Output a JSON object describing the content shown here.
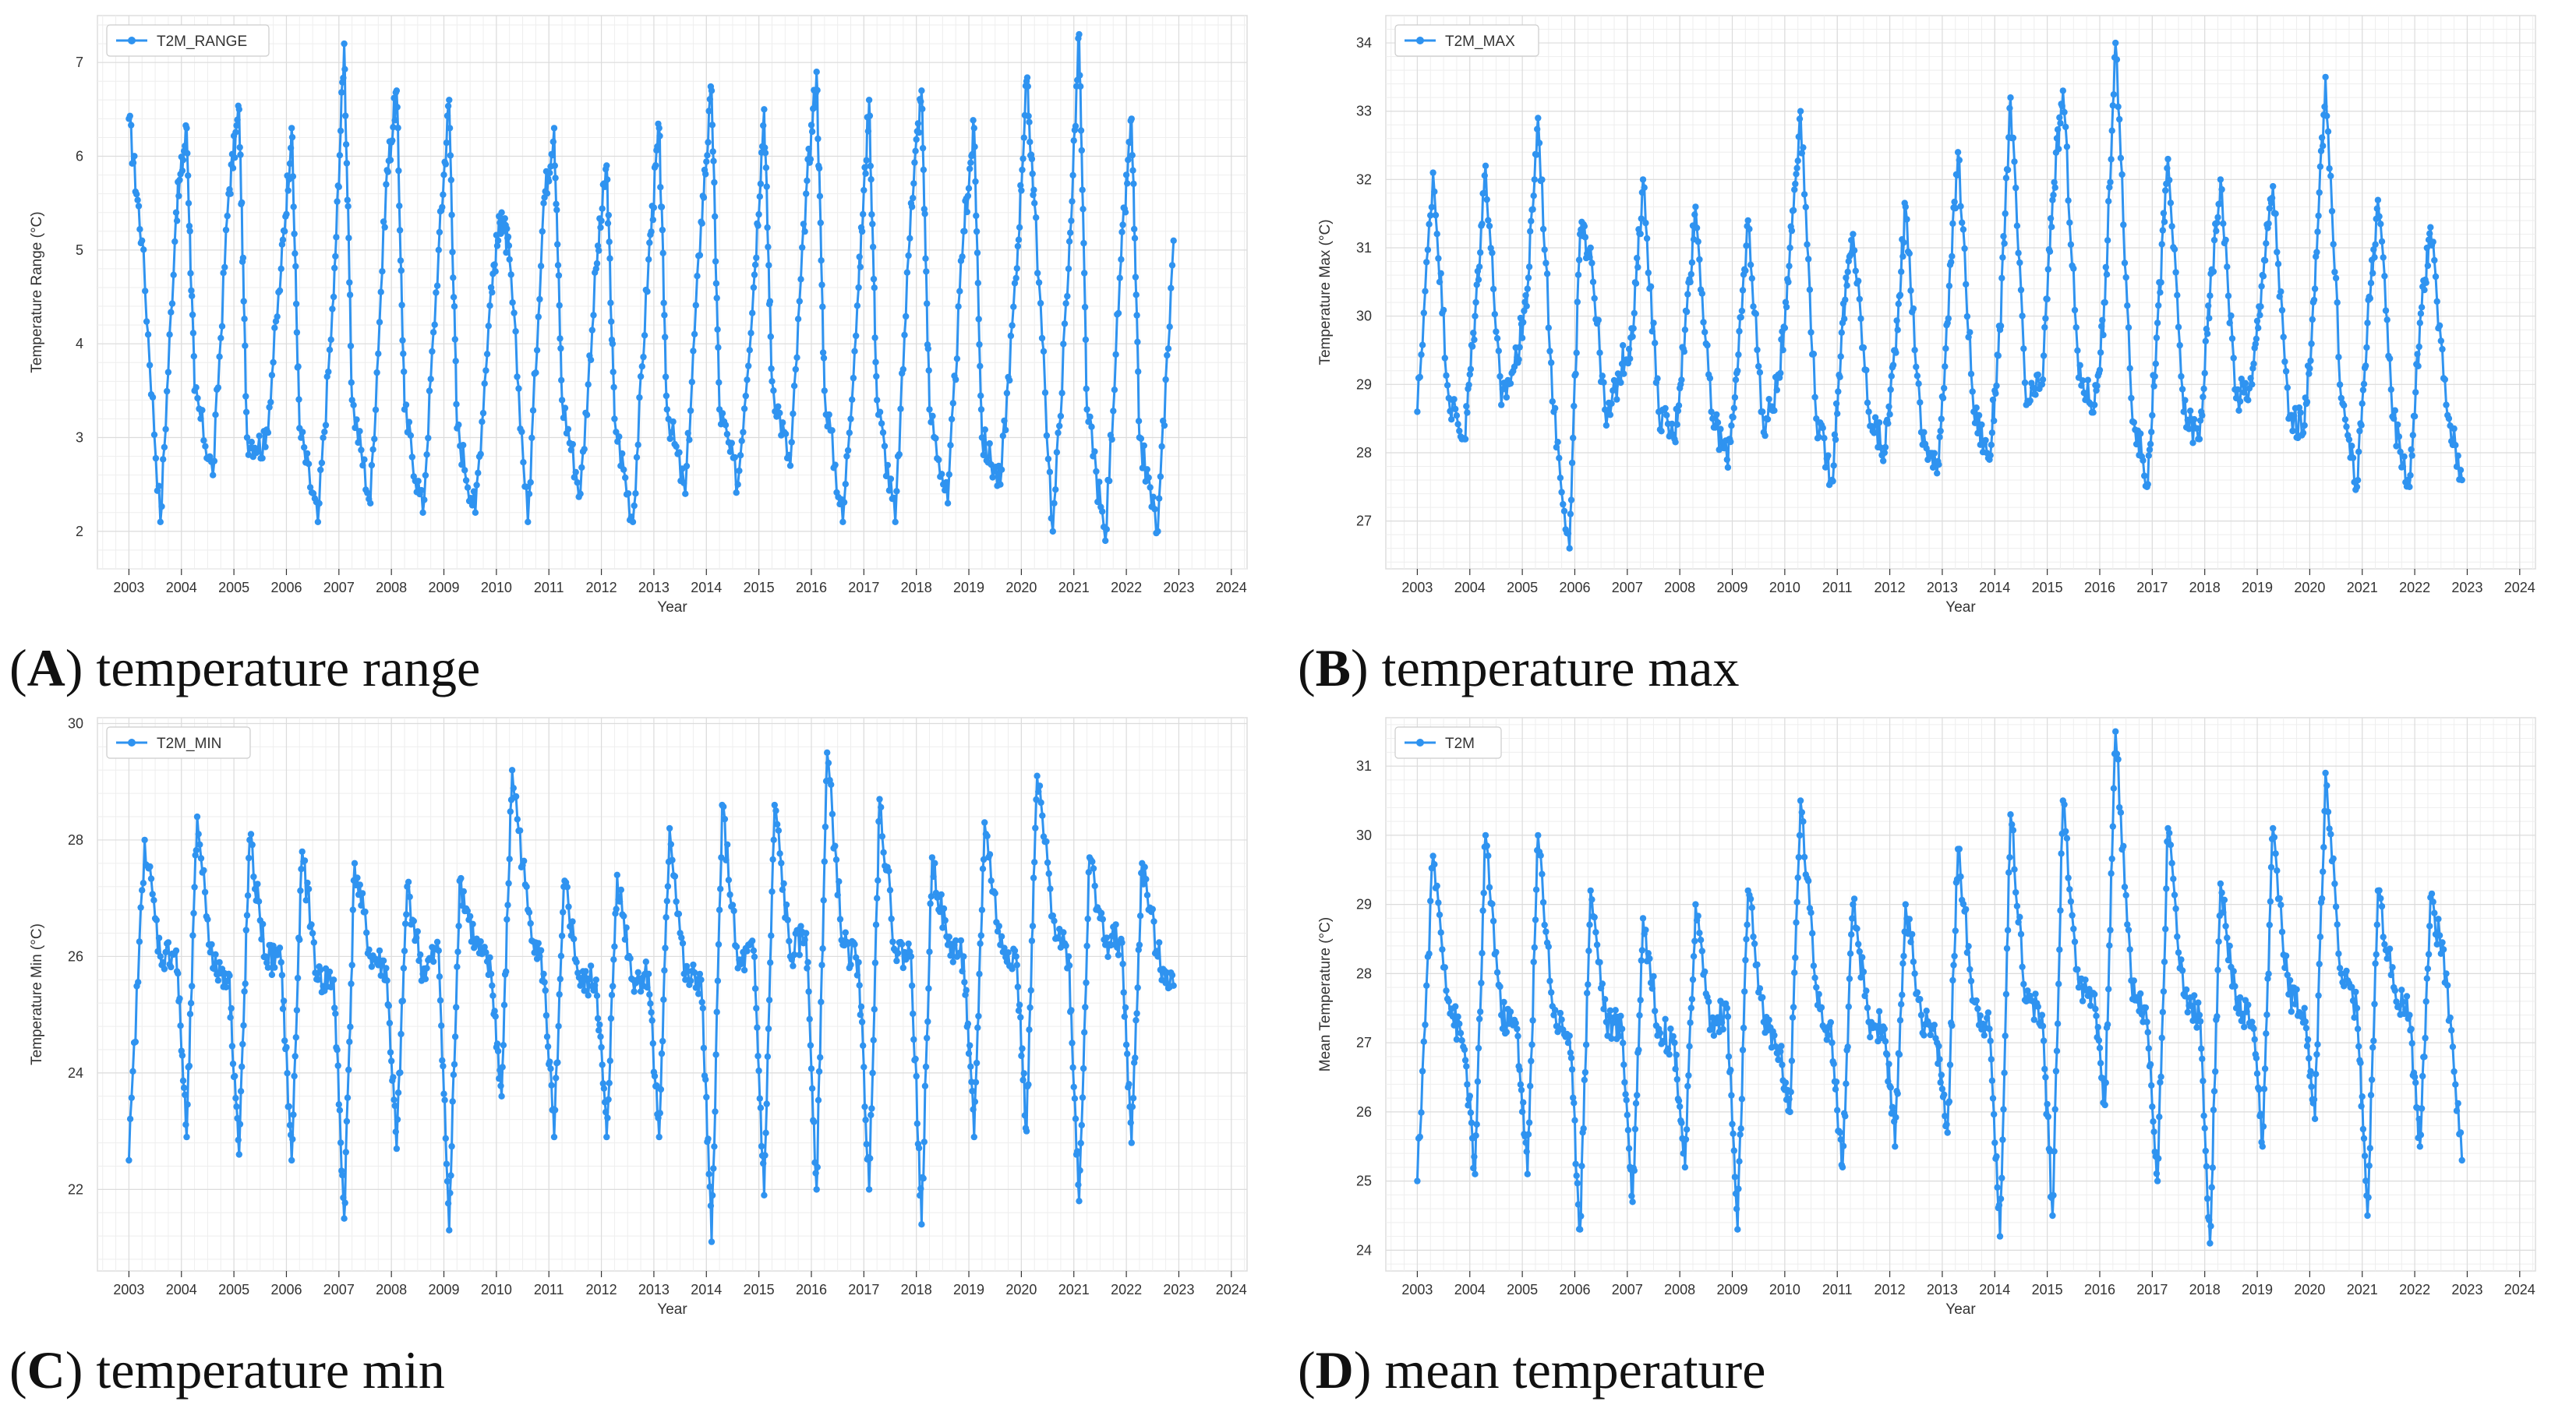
{
  "chart_data": [
    {
      "id": "A",
      "type": "line",
      "caption_letter": "A",
      "caption_text": "temperature range",
      "legend": "T2M_RANGE",
      "xlabel": "Year",
      "ylabel": "Temperature Range (°C)",
      "xlim": [
        2002.4,
        2024.3
      ],
      "ylim": [
        1.6,
        7.5
      ],
      "xticks": [
        2003,
        2004,
        2005,
        2006,
        2007,
        2008,
        2009,
        2010,
        2011,
        2012,
        2013,
        2014,
        2015,
        2016,
        2017,
        2018,
        2019,
        2020,
        2021,
        2022,
        2023,
        2024
      ],
      "yticks": [
        2,
        3,
        4,
        5,
        6,
        7
      ],
      "color": "#2f93f0",
      "series": [
        {
          "name": "T2M_RANGE",
          "x": [
            2003.0,
            2003.25,
            2003.6,
            2003.9,
            2004.1,
            2004.25,
            2004.6,
            2004.9,
            2005.1,
            2005.25,
            2005.6,
            2005.9,
            2006.1,
            2006.25,
            2006.6,
            2006.9,
            2007.1,
            2007.25,
            2007.6,
            2007.9,
            2008.1,
            2008.25,
            2008.6,
            2008.9,
            2009.1,
            2009.25,
            2009.6,
            2009.9,
            2010.1,
            2010.25,
            2010.6,
            2010.9,
            2011.1,
            2011.25,
            2011.6,
            2011.9,
            2012.1,
            2012.25,
            2012.6,
            2012.9,
            2013.1,
            2013.25,
            2013.6,
            2013.9,
            2014.1,
            2014.25,
            2014.6,
            2014.9,
            2015.1,
            2015.25,
            2015.6,
            2015.9,
            2016.1,
            2016.25,
            2016.6,
            2016.9,
            2017.1,
            2017.25,
            2017.6,
            2017.9,
            2018.1,
            2018.25,
            2018.6,
            2018.9,
            2019.1,
            2019.25,
            2019.6,
            2019.9,
            2020.1,
            2020.25,
            2020.6,
            2020.9,
            2021.1,
            2021.25,
            2021.6,
            2021.9,
            2022.1,
            2022.25,
            2022.6,
            2022.9
          ],
          "values": [
            6.4,
            5.1,
            2.1,
            5.4,
            6.3,
            3.5,
            2.6,
            5.6,
            6.5,
            3.0,
            2.9,
            4.8,
            6.3,
            3.1,
            2.1,
            4.5,
            7.2,
            3.4,
            2.3,
            5.7,
            6.7,
            3.3,
            2.2,
            5.0,
            6.6,
            3.1,
            2.2,
            4.6,
            5.4,
            4.9,
            2.1,
            5.5,
            6.3,
            3.4,
            2.4,
            4.8,
            5.9,
            3.2,
            2.1,
            4.9,
            6.3,
            3.3,
            2.4,
            5.3,
            6.7,
            3.3,
            2.5,
            4.6,
            6.5,
            3.6,
            2.7,
            5.6,
            6.9,
            3.5,
            2.1,
            4.6,
            6.6,
            3.4,
            2.1,
            5.5,
            6.7,
            3.3,
            2.3,
            5.2,
            6.3,
            3.0,
            2.5,
            4.7,
            6.8,
            5.5,
            2.0,
            4.8,
            7.3,
            3.3,
            1.9,
            4.9,
            6.4,
            3.0,
            2.0,
            5.1
          ]
        }
      ]
    },
    {
      "id": "B",
      "type": "line",
      "caption_letter": "B",
      "caption_text": "temperature max",
      "legend": "T2M_MAX",
      "xlabel": "Year",
      "ylabel": "Temperature Max (°C)",
      "xlim": [
        2002.4,
        2024.3
      ],
      "ylim": [
        26.3,
        34.4
      ],
      "xticks": [
        2003,
        2004,
        2005,
        2006,
        2007,
        2008,
        2009,
        2010,
        2011,
        2012,
        2013,
        2014,
        2015,
        2016,
        2017,
        2018,
        2019,
        2020,
        2021,
        2022,
        2023,
        2024
      ],
      "yticks": [
        27,
        28,
        29,
        30,
        31,
        32,
        33,
        34
      ],
      "color": "#2f93f0",
      "series": [
        {
          "name": "T2M_MAX",
          "x": [
            2003.0,
            2003.3,
            2003.6,
            2003.9,
            2004.1,
            2004.3,
            2004.6,
            2004.9,
            2005.1,
            2005.3,
            2005.6,
            2005.9,
            2006.1,
            2006.3,
            2006.6,
            2006.9,
            2007.1,
            2007.3,
            2007.6,
            2007.9,
            2008.1,
            2008.3,
            2008.6,
            2008.9,
            2009.1,
            2009.3,
            2009.6,
            2009.9,
            2010.1,
            2010.3,
            2010.6,
            2010.9,
            2011.1,
            2011.3,
            2011.6,
            2011.9,
            2012.1,
            2012.3,
            2012.6,
            2012.9,
            2013.1,
            2013.3,
            2013.6,
            2013.9,
            2014.1,
            2014.3,
            2014.6,
            2014.9,
            2015.1,
            2015.3,
            2015.6,
            2015.9,
            2016.1,
            2016.3,
            2016.6,
            2016.9,
            2017.1,
            2017.3,
            2017.6,
            2017.9,
            2018.1,
            2018.3,
            2018.6,
            2018.9,
            2019.1,
            2019.3,
            2019.6,
            2019.9,
            2020.1,
            2020.3,
            2020.6,
            2020.9,
            2021.1,
            2021.3,
            2021.6,
            2021.9,
            2022.1,
            2022.3,
            2022.6,
            2022.9
          ],
          "values": [
            28.6,
            32.1,
            28.8,
            28.2,
            30.0,
            32.2,
            28.7,
            29.4,
            30.4,
            32.9,
            28.6,
            26.6,
            31.2,
            31.0,
            28.4,
            29.3,
            29.7,
            32.0,
            28.6,
            28.2,
            29.8,
            31.6,
            28.6,
            27.9,
            29.2,
            31.4,
            28.3,
            29.1,
            31.0,
            33.0,
            28.5,
            27.6,
            29.9,
            31.2,
            28.6,
            28.0,
            29.5,
            31.6,
            28.3,
            27.7,
            29.9,
            32.4,
            28.6,
            27.9,
            29.8,
            33.2,
            28.7,
            29.0,
            31.7,
            33.3,
            29.1,
            28.7,
            30.2,
            34.0,
            28.8,
            27.5,
            29.9,
            32.3,
            28.6,
            28.2,
            30.3,
            32.0,
            28.8,
            29.0,
            30.6,
            31.9,
            28.5,
            28.4,
            30.4,
            33.5,
            28.8,
            27.5,
            29.9,
            31.7,
            28.5,
            27.5,
            29.9,
            31.3,
            28.7,
            27.6
          ]
        }
      ]
    },
    {
      "id": "C",
      "type": "line",
      "caption_letter": "C",
      "caption_text": "temperature min",
      "legend": "T2M_MIN",
      "xlabel": "Year",
      "ylabel": "Temperature Min (°C)",
      "xlim": [
        2002.4,
        2024.3
      ],
      "ylim": [
        20.6,
        30.1
      ],
      "xticks": [
        2003,
        2004,
        2005,
        2006,
        2007,
        2008,
        2009,
        2010,
        2011,
        2012,
        2013,
        2014,
        2015,
        2016,
        2017,
        2018,
        2019,
        2020,
        2021,
        2022,
        2023,
        2024
      ],
      "yticks": [
        22,
        24,
        26,
        28,
        30
      ],
      "color": "#2f93f0",
      "series": [
        {
          "name": "T2M_MIN",
          "x": [
            2003.0,
            2003.3,
            2003.6,
            2003.9,
            2004.1,
            2004.3,
            2004.6,
            2004.9,
            2005.1,
            2005.3,
            2005.6,
            2005.9,
            2006.1,
            2006.3,
            2006.6,
            2006.9,
            2007.1,
            2007.3,
            2007.6,
            2007.9,
            2008.1,
            2008.3,
            2008.6,
            2008.9,
            2009.1,
            2009.3,
            2009.6,
            2009.9,
            2010.1,
            2010.3,
            2010.6,
            2010.9,
            2011.1,
            2011.3,
            2011.6,
            2011.9,
            2012.1,
            2012.3,
            2012.6,
            2012.9,
            2013.1,
            2013.3,
            2013.6,
            2013.9,
            2014.1,
            2014.3,
            2014.6,
            2014.9,
            2015.1,
            2015.3,
            2015.6,
            2015.9,
            2016.1,
            2016.3,
            2016.6,
            2016.9,
            2017.1,
            2017.3,
            2017.6,
            2017.9,
            2018.1,
            2018.3,
            2018.6,
            2018.9,
            2019.1,
            2019.3,
            2019.6,
            2019.9,
            2020.1,
            2020.3,
            2020.6,
            2020.9,
            2021.1,
            2021.3,
            2021.6,
            2021.9,
            2022.1,
            2022.3,
            2022.6,
            2022.9
          ],
          "values": [
            22.5,
            28.0,
            26.0,
            26.1,
            22.9,
            28.4,
            25.8,
            25.7,
            22.6,
            28.0,
            26.0,
            25.9,
            22.5,
            27.8,
            25.6,
            25.6,
            21.5,
            27.6,
            26.0,
            25.8,
            22.7,
            27.2,
            25.7,
            26.1,
            21.3,
            27.3,
            26.2,
            25.7,
            23.6,
            29.2,
            26.8,
            25.7,
            22.9,
            27.3,
            25.5,
            25.6,
            22.9,
            27.4,
            25.6,
            25.7,
            22.9,
            28.2,
            25.6,
            25.6,
            21.1,
            28.6,
            25.8,
            26.1,
            21.9,
            28.6,
            26.0,
            26.4,
            22.0,
            29.5,
            26.2,
            25.9,
            22.0,
            28.7,
            26.1,
            26.0,
            21.4,
            27.7,
            26.2,
            26.0,
            22.9,
            28.3,
            26.2,
            26.0,
            23.0,
            29.1,
            26.7,
            26.0,
            21.8,
            27.7,
            26.2,
            26.3,
            22.8,
            27.6,
            26.0,
            25.5
          ]
        }
      ]
    },
    {
      "id": "D",
      "type": "line",
      "caption_letter": "D",
      "caption_text": "mean temperature",
      "legend": "T2M",
      "xlabel": "Year",
      "ylabel": "Mean Temperature (°C)",
      "xlim": [
        2002.4,
        2024.3
      ],
      "ylim": [
        23.7,
        31.7
      ],
      "xticks": [
        2003,
        2004,
        2005,
        2006,
        2007,
        2008,
        2009,
        2010,
        2011,
        2012,
        2013,
        2014,
        2015,
        2016,
        2017,
        2018,
        2019,
        2020,
        2021,
        2022,
        2023,
        2024
      ],
      "yticks": [
        24,
        25,
        26,
        27,
        28,
        29,
        30,
        31
      ],
      "color": "#2f93f0",
      "series": [
        {
          "name": "T2M",
          "x": [
            2003.0,
            2003.3,
            2003.6,
            2003.9,
            2004.1,
            2004.3,
            2004.6,
            2004.9,
            2005.1,
            2005.3,
            2005.6,
            2005.9,
            2006.1,
            2006.3,
            2006.6,
            2006.9,
            2007.1,
            2007.3,
            2007.6,
            2007.9,
            2008.1,
            2008.3,
            2008.6,
            2008.9,
            2009.1,
            2009.3,
            2009.6,
            2009.9,
            2010.1,
            2010.3,
            2010.6,
            2010.9,
            2011.1,
            2011.3,
            2011.6,
            2011.9,
            2012.1,
            2012.3,
            2012.6,
            2012.9,
            2013.1,
            2013.3,
            2013.6,
            2013.9,
            2014.1,
            2014.3,
            2014.6,
            2014.9,
            2015.1,
            2015.3,
            2015.6,
            2015.9,
            2016.1,
            2016.3,
            2016.6,
            2016.9,
            2017.1,
            2017.3,
            2017.6,
            2017.9,
            2018.1,
            2018.3,
            2018.6,
            2018.9,
            2019.1,
            2019.3,
            2019.6,
            2019.9,
            2020.1,
            2020.3,
            2020.6,
            2020.9,
            2021.1,
            2021.3,
            2021.6,
            2021.9,
            2022.1,
            2022.3,
            2022.6,
            2022.9
          ],
          "values": [
            25.0,
            29.7,
            27.6,
            26.9,
            25.1,
            30.0,
            27.4,
            27.2,
            25.1,
            30.0,
            27.4,
            27.1,
            24.3,
            29.2,
            27.3,
            27.2,
            24.7,
            28.8,
            27.2,
            27.0,
            25.2,
            29.0,
            27.2,
            27.5,
            24.3,
            29.2,
            27.3,
            26.9,
            26.0,
            30.5,
            27.8,
            27.0,
            25.2,
            29.0,
            27.3,
            27.2,
            25.5,
            29.0,
            27.4,
            27.0,
            25.7,
            29.8,
            27.6,
            27.2,
            24.2,
            30.3,
            27.6,
            27.4,
            24.5,
            30.5,
            27.8,
            27.7,
            26.1,
            31.5,
            27.9,
            27.3,
            25.0,
            30.1,
            27.7,
            27.4,
            24.1,
            29.3,
            27.5,
            27.3,
            25.5,
            30.1,
            27.7,
            27.5,
            25.9,
            30.9,
            28.0,
            27.5,
            24.5,
            29.2,
            27.8,
            27.4,
            25.5,
            29.1,
            28.0,
            25.3
          ]
        }
      ]
    }
  ]
}
